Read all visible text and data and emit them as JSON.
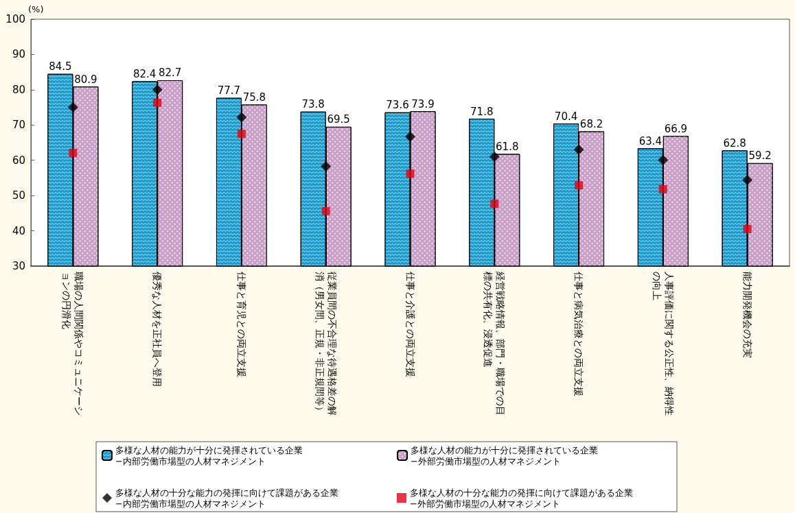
{
  "chart_data": {
    "type": "bar",
    "ylabel": "(%)",
    "categories": [
      "職場の人間関係やコミュニケーションの円滑化",
      "優秀な人材を正社員へ登用",
      "仕事と育児との両立支援",
      "従業員間の不合理な待遇格差の解消（男女間、正規・非正規間等）",
      "仕事と介護との両立支援",
      "経営戦略情報、部門・職場での目標の共有化、浸透促進",
      "仕事と病気治療との両立支援",
      "人事評価に関する公正性、納得性の向上",
      "能力開発機会の充実"
    ],
    "series": [
      {
        "data_labels": true,
        "name": "多様な人材の能力が十分に発揮されている企業\n−内部労働市場型の人材マネジメント",
        "color": "#1b9ccc",
        "values": [
          84.5,
          82.4,
          77.7,
          73.8,
          73.6,
          71.8,
          70.4,
          63.4,
          62.8
        ]
      },
      {
        "data_labels": true,
        "name": "多様な人材の能力が十分に発揮されている企業\n−外部労働市場型の人材マネジメント",
        "color": "#c9a0c8",
        "values": [
          80.9,
          82.7,
          75.8,
          69.5,
          73.9,
          61.8,
          68.2,
          66.9,
          59.2
        ]
      },
      {
        "type": "scatter",
        "marker": "diamond",
        "name": "多様な人材の十分な能力の発揮に向けて課題がある企業\n−内部労働市場型の人材マネジメント",
        "color": "#000000",
        "x": [
          "職場の人間関係やコミュニケーションの円滑化",
          "優秀な人材を正社員へ登用",
          "仕事と育児との両立支援",
          "従業員間の不合理な待遇格差の解消（男女間、正規・非正規間等）",
          "仕事と介護との両立支援",
          "経営戦略情報、部門・職場での目標の共有化、浸透促進",
          "仕事と病気治療との両立支援",
          "人事評価に関する公正性、納得性の向上",
          "能力開発機会の充実"
        ],
        "values": [
          75.0,
          80.0,
          72.2,
          58.3,
          66.7,
          61.0,
          63.0,
          60.1,
          54.4
        ]
      },
      {
        "type": "scatter",
        "marker": "square",
        "name": "多様な人材の十分な能力の発揮に向けて課題がある企業\n−外部労働市場型の人材マネジメント",
        "color": "#e60012",
        "x": [
          "職場の人間関係やコミュニケーションの円滑化",
          "優秀な人材を正社員へ登用",
          "仕事と育児との両立支援",
          "従業員間の不合理な待遇格差の解消（男女間、正規・非正規間等）",
          "仕事と介護との両立支援",
          "経営戦略情報、部門・職場での目標の共有化、浸透促進",
          "仕事と病気治療との両立支援",
          "人事評価に関する公正性、納得性の向上",
          "能力開発機会の充実"
        ],
        "values": [
          62.1,
          76.3,
          67.5,
          45.6,
          56.2,
          47.7,
          52.9,
          51.8,
          40.5
        ]
      }
    ],
    "ylim": [
      30,
      100
    ],
    "yticks": [
      30,
      40,
      50,
      60,
      70,
      80,
      90,
      100
    ],
    "grid": false,
    "legend": "bottom"
  }
}
